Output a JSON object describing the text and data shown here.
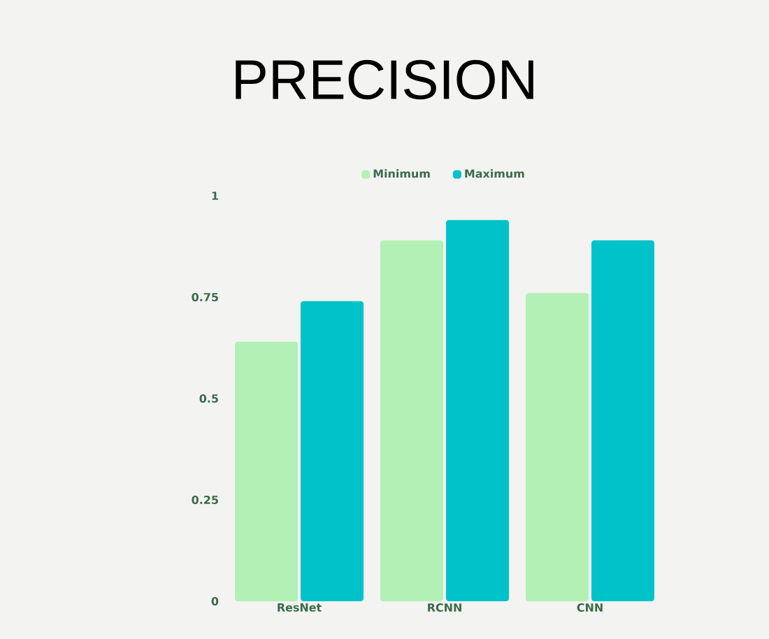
{
  "chart_data": {
    "type": "bar",
    "title": "PRECISION",
    "categories": [
      "ResNet",
      "RCNN",
      "CNN"
    ],
    "series": [
      {
        "name": "Minimum",
        "color": "#b3f0b5",
        "values": [
          0.64,
          0.89,
          0.76
        ]
      },
      {
        "name": "Maximum",
        "color": "#00c2c9",
        "values": [
          0.74,
          0.94,
          0.89
        ]
      }
    ],
    "ylim": [
      0,
      1
    ],
    "yticks": [
      0,
      0.25,
      0.5,
      0.75,
      1
    ],
    "grid": false,
    "legend": "top"
  }
}
